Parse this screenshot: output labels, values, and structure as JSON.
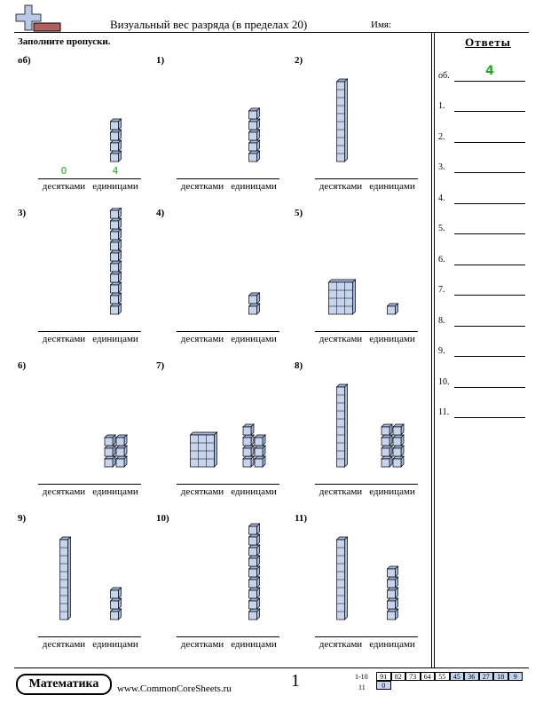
{
  "header": {
    "title": "Визуальный вес разряда (в пределах 20)",
    "name_label": "Имя:",
    "instructions": "Заполните пропуски."
  },
  "answers_panel": {
    "title": "Ответы",
    "items": [
      {
        "label": "об.",
        "value": "4"
      },
      {
        "label": "1.",
        "value": ""
      },
      {
        "label": "2.",
        "value": ""
      },
      {
        "label": "3.",
        "value": ""
      },
      {
        "label": "4.",
        "value": ""
      },
      {
        "label": "5.",
        "value": ""
      },
      {
        "label": "6.",
        "value": ""
      },
      {
        "label": "7.",
        "value": ""
      },
      {
        "label": "8.",
        "value": ""
      },
      {
        "label": "9.",
        "value": ""
      },
      {
        "label": "10.",
        "value": ""
      },
      {
        "label": "11.",
        "value": ""
      }
    ]
  },
  "problems": [
    {
      "label": "об)",
      "tens": 0,
      "ones": 4,
      "tens_answer": "0",
      "ones_answer": "4"
    },
    {
      "label": "1)",
      "tens": 0,
      "ones": 5,
      "tens_answer": "",
      "ones_answer": ""
    },
    {
      "label": "2)",
      "tens": 1,
      "ones": 0,
      "tens_answer": "",
      "ones_answer": ""
    },
    {
      "label": "3)",
      "tens": 0,
      "ones": 10,
      "tens_answer": "",
      "ones_answer": ""
    },
    {
      "label": "4)",
      "tens": 0,
      "ones": 2,
      "tens_answer": "",
      "ones_answer": ""
    },
    {
      "label": "5)",
      "tens": 1,
      "ones": 1,
      "tens_answer": "",
      "ones_answer": ""
    },
    {
      "label": "6)",
      "tens": 0,
      "ones": 6,
      "tens_answer": "",
      "ones_answer": ""
    },
    {
      "label": "7)",
      "tens": 1,
      "ones": 7,
      "tens_answer": "",
      "ones_answer": ""
    },
    {
      "label": "8)",
      "tens": 1,
      "ones": 8,
      "tens_answer": "",
      "ones_answer": ""
    },
    {
      "label": "9)",
      "tens": 1,
      "ones": 3,
      "tens_answer": "",
      "ones_answer": ""
    },
    {
      "label": "10)",
      "tens": 0,
      "ones": 9,
      "tens_answer": "",
      "ones_answer": ""
    },
    {
      "label": "11)",
      "tens": 1,
      "ones": 5,
      "tens_answer": "",
      "ones_answer": ""
    }
  ],
  "labels": {
    "tens": "десятками",
    "ones": "единицами"
  },
  "footer": {
    "brand": "Математика",
    "site": "www.CommonCoreSheets.ru",
    "page_number": "1",
    "score_rows": [
      {
        "range": "1-10",
        "cells": [
          "91",
          "82",
          "73",
          "64",
          "55",
          "45",
          "36",
          "27",
          "18",
          "9"
        ]
      },
      {
        "range": "11",
        "cells": [
          "0"
        ]
      }
    ]
  },
  "colors": {
    "cube_fill": "#c6d4ee",
    "cube_side": "#a6b7dc",
    "cube_stroke": "#000000",
    "answer_green": "#22aa22",
    "score_highlight": "#c6d4ee"
  }
}
